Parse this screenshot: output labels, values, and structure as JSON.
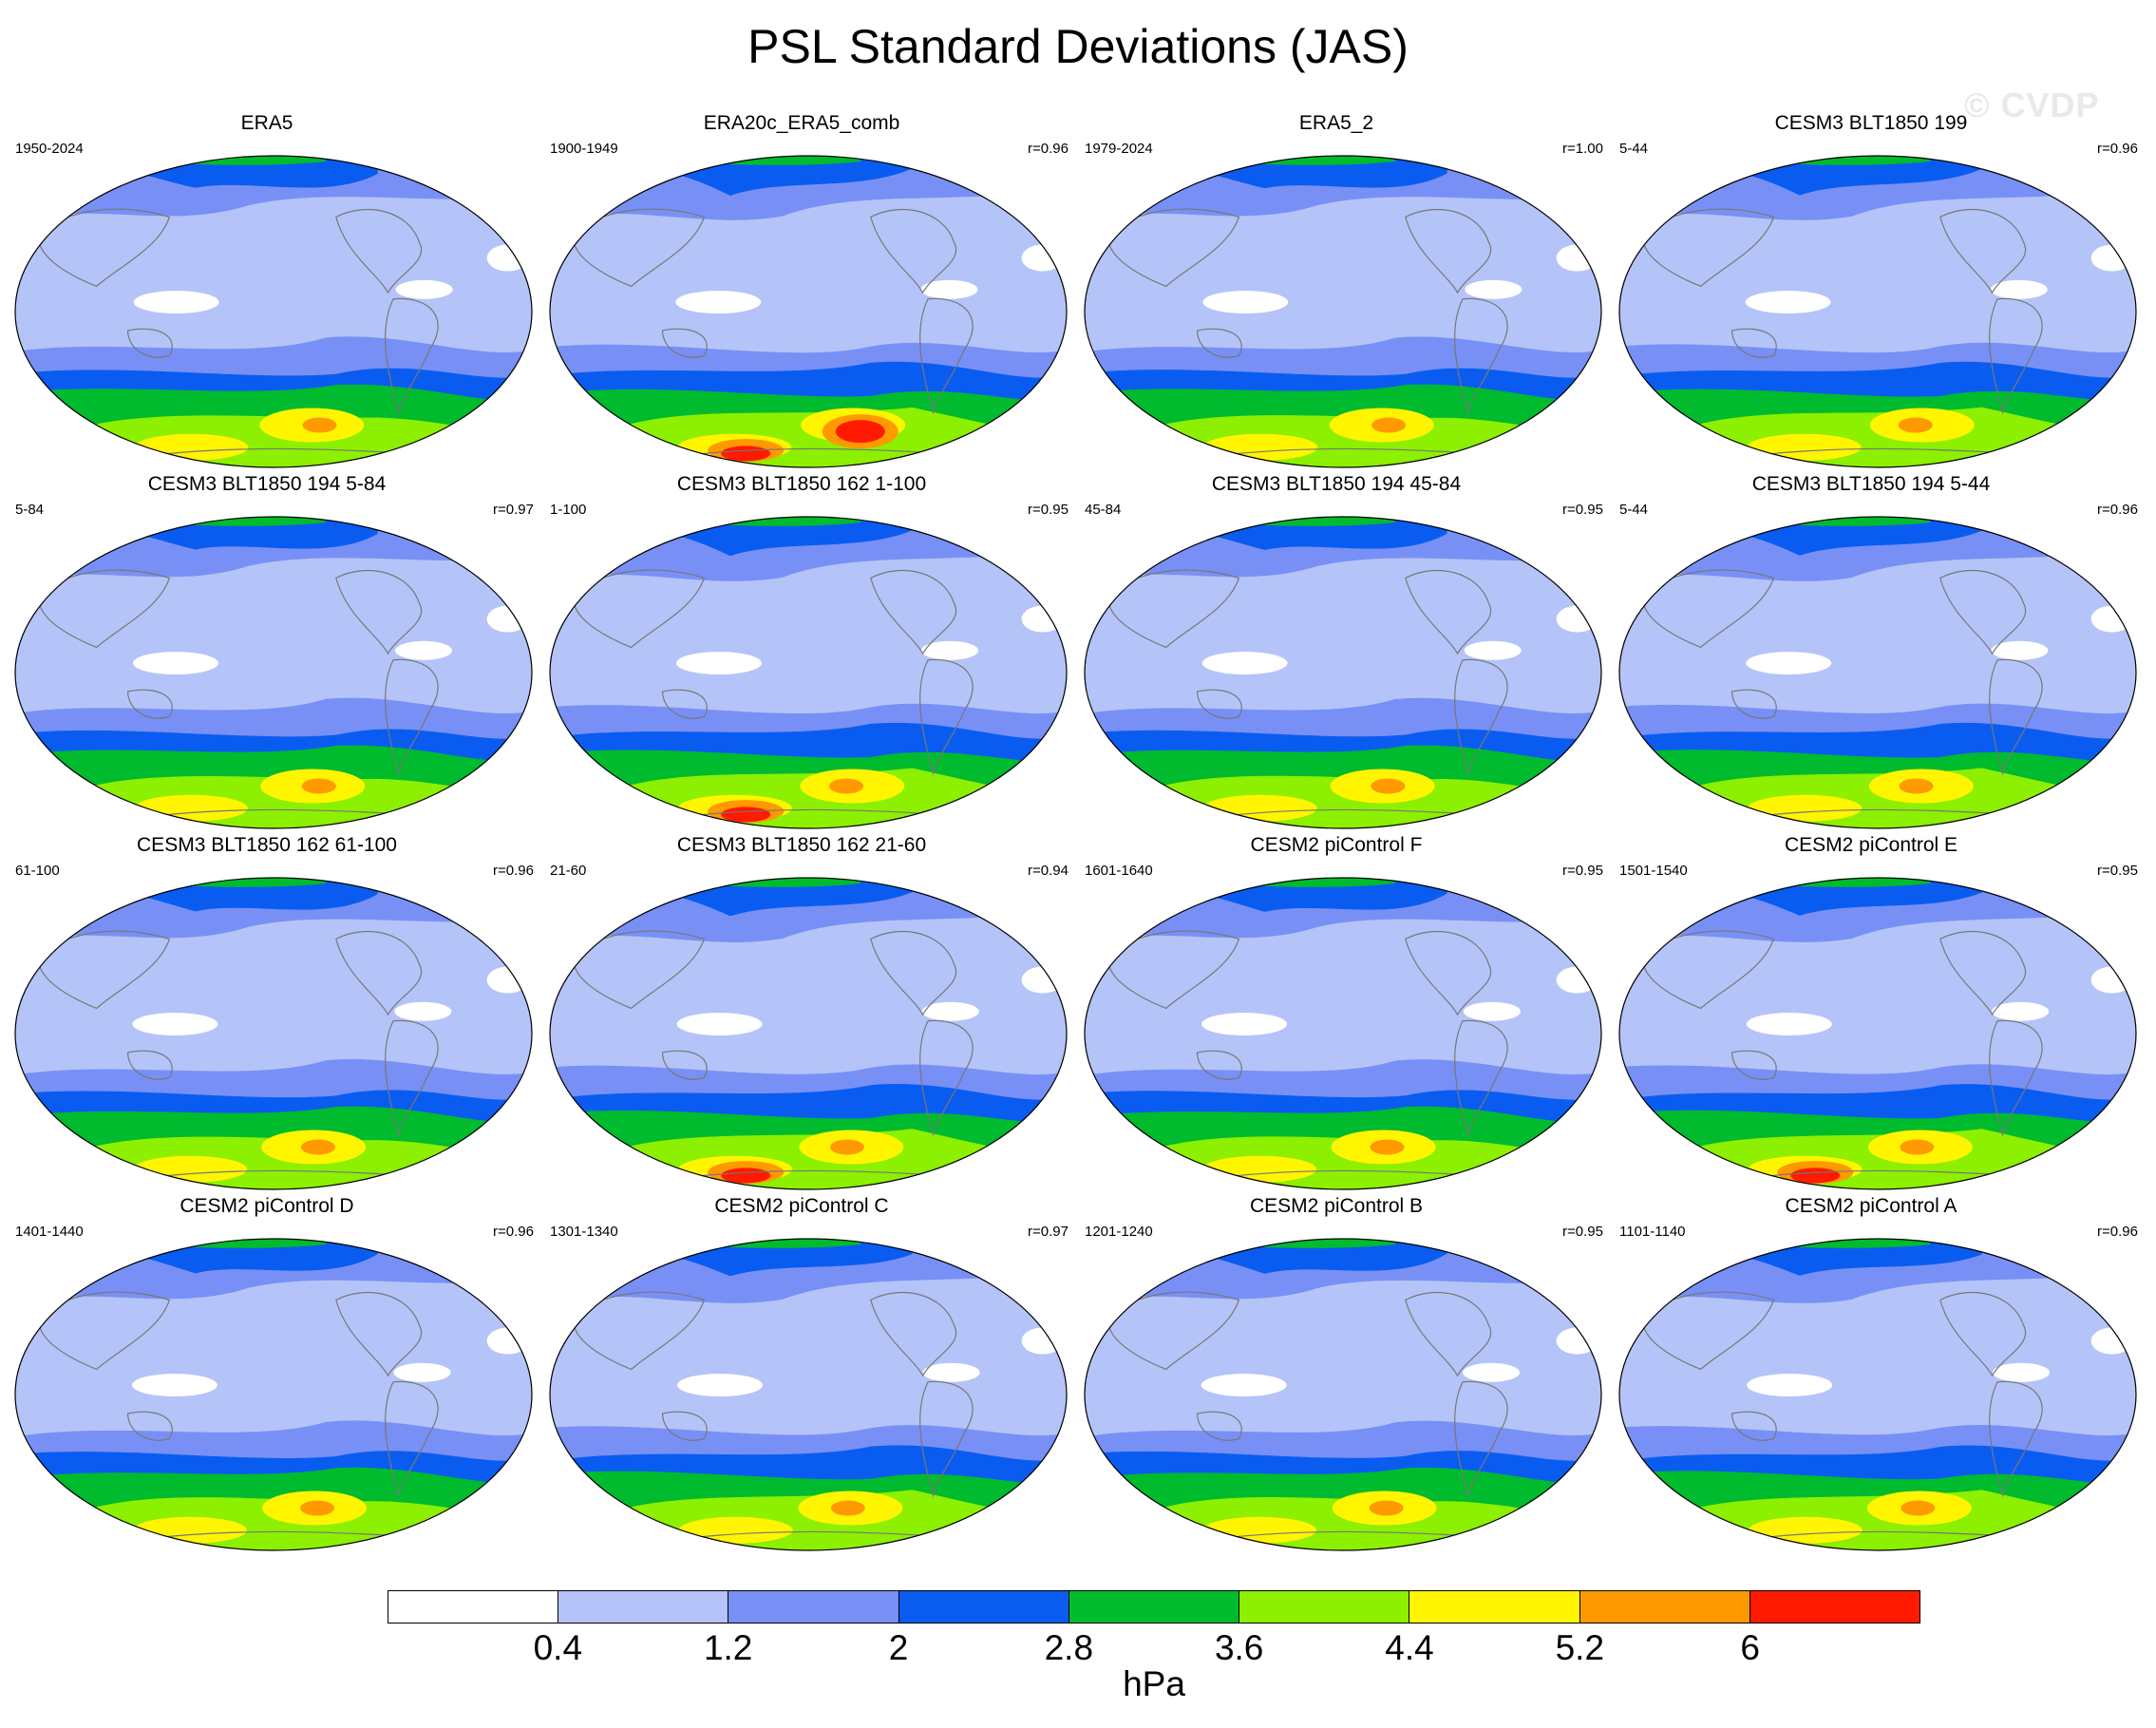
{
  "title": "PSL Standard Deviations (JAS)",
  "watermark": "© CVDP",
  "colorbar": {
    "colors": [
      "#ffffff",
      "#b4c4f8",
      "#7890f5",
      "#0a5cf0",
      "#00bb2e",
      "#8cf000",
      "#fff500",
      "#ff9900",
      "#ff1a00"
    ],
    "tick_labels": [
      "0.4",
      "1.2",
      "2",
      "2.8",
      "3.6",
      "4.4",
      "5.2",
      "6"
    ],
    "unit": "hPa"
  },
  "panels": [
    {
      "title": "ERA5",
      "years": "1950-2024",
      "r": ""
    },
    {
      "title": "ERA20c_ERA5_comb",
      "years": "1900-1949",
      "r": "r=0.96"
    },
    {
      "title": "ERA5_2",
      "years": "1979-2024",
      "r": "r=1.00"
    },
    {
      "title": "CESM3 BLT1850 199",
      "years": "5-44",
      "r": "r=0.96"
    },
    {
      "title": "CESM3 BLT1850 194 5-84",
      "years": "5-84",
      "r": "r=0.97"
    },
    {
      "title": "CESM3 BLT1850 162 1-100",
      "years": "1-100",
      "r": "r=0.95"
    },
    {
      "title": "CESM3 BLT1850 194 45-84",
      "years": "45-84",
      "r": "r=0.95"
    },
    {
      "title": "CESM3 BLT1850 194 5-44",
      "years": "5-44",
      "r": "r=0.96"
    },
    {
      "title": "CESM3 BLT1850 162 61-100",
      "years": "61-100",
      "r": "r=0.96"
    },
    {
      "title": "CESM3 BLT1850 162 21-60",
      "years": "21-60",
      "r": "r=0.94"
    },
    {
      "title": "CESM2 piControl F",
      "years": "1601-1640",
      "r": "r=0.95"
    },
    {
      "title": "CESM2 piControl E",
      "years": "1501-1540",
      "r": "r=0.95"
    },
    {
      "title": "CESM2 piControl D",
      "years": "1401-1440",
      "r": "r=0.96"
    },
    {
      "title": "CESM2 piControl C",
      "years": "1301-1340",
      "r": "r=0.97"
    },
    {
      "title": "CESM2 piControl B",
      "years": "1201-1240",
      "r": "r=0.95"
    },
    {
      "title": "CESM2 piControl A",
      "years": "1101-1140",
      "r": "r=0.96"
    }
  ]
}
